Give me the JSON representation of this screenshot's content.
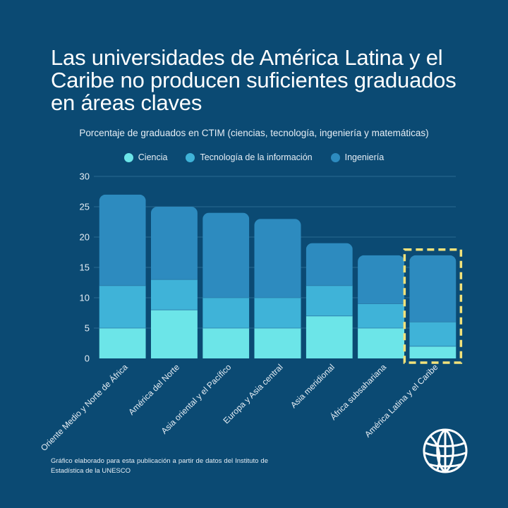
{
  "header": {
    "title": "Las universidades de América Latina y el Caribe no producen suficientes graduados en áreas claves",
    "subtitle": "Porcentaje de graduados en CTIM (ciencias, tecnología, ingeniería y matemáticas)"
  },
  "footnote": "Gráfico elaborado para esta publicación a partir de datos del Instituto de Estadística de la UNESCO",
  "logo": {
    "icon": "world-bank-globe-icon"
  },
  "colors": {
    "background": "#0b4a73",
    "ciencia": "#6ce5e8",
    "tecnologia": "#3fb3d8",
    "ingenieria": "#2d8bbf",
    "highlight": "#f2e27a",
    "gridline": "#2a6b92"
  },
  "chart_data": {
    "type": "bar",
    "stacked": true,
    "categories": [
      "Oriente Medio y Norte de África",
      "América del Norte",
      "Asia oriental y el Pacífico",
      "Europa y Asia central",
      "Asia meridional",
      "África subsahariana",
      "América Latina y el Caribe"
    ],
    "series": [
      {
        "name": "Ciencia",
        "values": [
          5,
          8,
          5,
          5,
          7,
          5,
          2
        ]
      },
      {
        "name": "Tecnología de la información",
        "values": [
          7,
          5,
          5,
          5,
          5,
          4,
          4
        ]
      },
      {
        "name": "Ingeniería",
        "values": [
          15,
          12,
          14,
          13,
          7,
          8,
          11
        ]
      }
    ],
    "ylim": [
      0,
      30
    ],
    "yticks": [
      0,
      5,
      10,
      15,
      20,
      25,
      30
    ],
    "grid": true,
    "legend": "top-center",
    "highlighted_category": "América Latina y el Caribe"
  }
}
